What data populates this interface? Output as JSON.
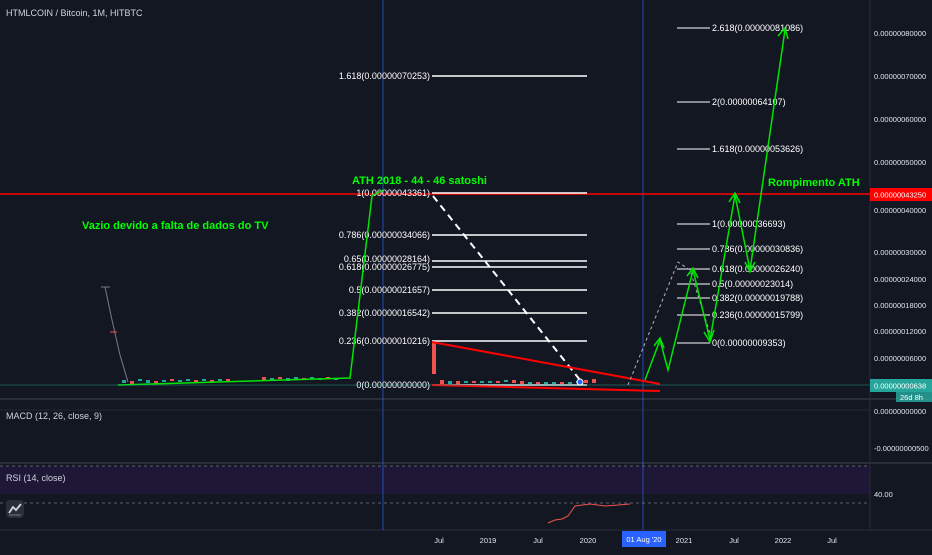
{
  "header": {
    "symbol_title": "HTMLCOIN / Bitcoin, 1M, HITBTC"
  },
  "annotations": {
    "ath_2018": "ATH 2018 - 44 - 46 satoshi",
    "no_data": "Vazio devido a falta de dados do TV",
    "breakout": "Rompimento ATH"
  },
  "fib_left": [
    "1.618(0.00000070253)",
    "1(0.00000043361)",
    "0.786(0.00000034066)",
    "0.65(0.00000028164)",
    "0.618(0.00000026775)",
    "0.5(0.00000021657)",
    "0.382(0.00000016542)",
    "0.236(0.00000010216)",
    "0(0.00000000000)"
  ],
  "fib_right": [
    "2.618(0.00000081086)",
    "2(0.00000064107)",
    "1.618(0.00000053626)",
    "1(0.00000036693)",
    "0.786(0.00000030836)",
    "0.618(0.00000026240)",
    "0.5(0.00000023014)",
    "0.382(0.00000019788)",
    "0.236(0.00000015799)",
    "0(0.00000009353)"
  ],
  "price_axis": [
    "0.00000080000",
    "0.00000070000",
    "0.00000060000",
    "0.00000050000",
    "0.00000040000",
    "0.00000030000",
    "0.00000024000",
    "0.00000018000",
    "0.00000012000",
    "0.00000006000"
  ],
  "price_tags": {
    "ath_level": "0.00000043250",
    "current": "0.00000000638",
    "countdown": "26d 8h"
  },
  "macd": {
    "title": "MACD (12, 26, close, 9)",
    "axis": [
      "0.00000000000",
      "-0.00000000500"
    ]
  },
  "rsi": {
    "title": "RSI (14, close)",
    "axis_label": "40.00"
  },
  "time_axis": {
    "labels": [
      "Jul",
      "2019",
      "Jul",
      "2020",
      "2021",
      "Jul",
      "2022",
      "Jul"
    ],
    "highlight": "01 Aug '20"
  },
  "colors": {
    "background": "#131722",
    "green_text": "#00ff00",
    "red_line": "#ff0000",
    "crosshair": "#2962ff",
    "rsi_band": "#1f1736"
  },
  "icons": {
    "logo": "tradingview-logo-icon"
  }
}
